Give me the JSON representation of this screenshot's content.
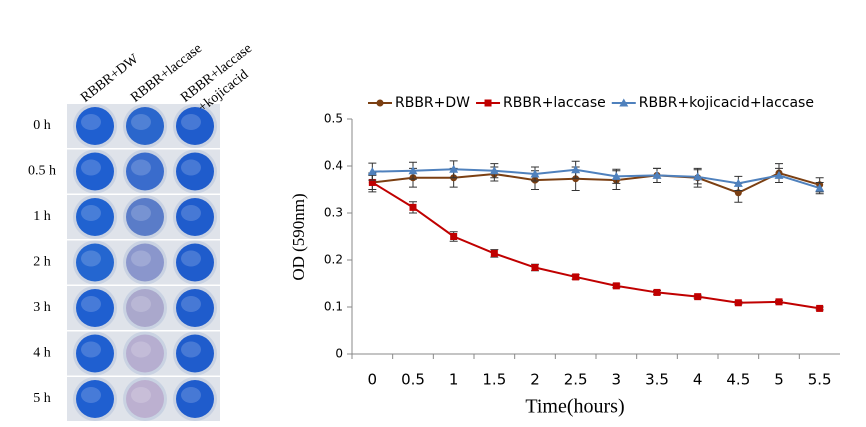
{
  "photo_panel": {
    "column_labels": [
      [
        "RBBR+DW"
      ],
      [
        "RBBR+laccase"
      ],
      [
        "RBBR+laccase",
        "+kojicacid"
      ]
    ],
    "row_labels": [
      "0 h",
      "0.5 h",
      "1 h",
      "2 h",
      "3 h",
      "4 h",
      "5 h"
    ],
    "well_colors": [
      [
        "#1f5fd0",
        "#2a66cc",
        "#1f5ccc"
      ],
      [
        "#1f5fd0",
        "#3a6ccc",
        "#1f5ccc"
      ],
      [
        "#2062d0",
        "#5a7cc8",
        "#1f5ccc"
      ],
      [
        "#2466d0",
        "#8a96cc",
        "#1f5ccc"
      ],
      [
        "#1f5fd0",
        "#aaa8cc",
        "#1f5ccc"
      ],
      [
        "#1f5fd0",
        "#b6aed0",
        "#1f5ccc"
      ],
      [
        "#1f5fd0",
        "#bcb0d0",
        "#1f5ccc"
      ]
    ]
  },
  "chart_data": {
    "type": "line",
    "categories": [
      "0",
      "0.5",
      "1",
      "1.5",
      "2",
      "2.5",
      "3",
      "3.5",
      "4",
      "4.5",
      "5",
      "5.5"
    ],
    "series": [
      {
        "name": "RBBR+DW",
        "color": "#7b3f12",
        "marker": "circle",
        "values": [
          0.365,
          0.375,
          0.375,
          0.383,
          0.37,
          0.373,
          0.37,
          0.38,
          0.375,
          0.343,
          0.385,
          0.36
        ],
        "errors": [
          0.02,
          0.02,
          0.02,
          0.015,
          0.02,
          0.025,
          0.02,
          0.015,
          0.02,
          0.02,
          0.02,
          0.015
        ]
      },
      {
        "name": "RBBR+laccase",
        "color": "#c00000",
        "marker": "square",
        "values": [
          0.365,
          0.312,
          0.25,
          0.214,
          0.184,
          0.164,
          0.145,
          0.131,
          0.122,
          0.109,
          0.111,
          0.097
        ],
        "errors": [
          0.015,
          0.012,
          0.01,
          0.008,
          0.007,
          0.005,
          0.004,
          0.004,
          0.003,
          0.003,
          0.003,
          0.003
        ]
      },
      {
        "name": "RBBR+kojicacid+laccase",
        "color": "#4f81bd",
        "marker": "triangle",
        "values": [
          0.388,
          0.39,
          0.393,
          0.39,
          0.383,
          0.392,
          0.378,
          0.38,
          0.377,
          0.363,
          0.38,
          0.353
        ],
        "errors": [
          0.018,
          0.018,
          0.018,
          0.015,
          0.015,
          0.018,
          0.015,
          0.015,
          0.015,
          0.015,
          0.015,
          0.012
        ]
      }
    ],
    "y_label": "OD (590nm)",
    "x_label": "Time(hours)",
    "ylim": [
      0,
      0.5
    ],
    "yticks": [
      0,
      0.1,
      0.2,
      0.3,
      0.4,
      0.5
    ],
    "grid": false,
    "legend": "top"
  }
}
